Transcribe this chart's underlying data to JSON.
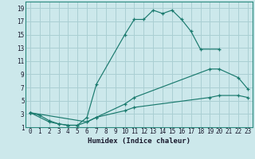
{
  "title": "",
  "xlabel": "Humidex (Indice chaleur)",
  "bg_color": "#cce8eb",
  "grid_color": "#aacfd3",
  "line_color": "#1a7a6e",
  "xlim": [
    -0.5,
    23.5
  ],
  "ylim": [
    1,
    20
  ],
  "xticks": [
    0,
    1,
    2,
    3,
    4,
    5,
    6,
    7,
    8,
    9,
    10,
    11,
    12,
    13,
    14,
    15,
    16,
    17,
    18,
    19,
    20,
    21,
    22,
    23
  ],
  "yticks": [
    1,
    3,
    5,
    7,
    9,
    11,
    13,
    15,
    17,
    19
  ],
  "curve1_x": [
    0,
    1,
    2,
    3,
    4,
    5,
    6,
    7,
    10,
    11,
    12,
    13,
    14,
    15,
    16,
    17,
    18,
    20
  ],
  "curve1_y": [
    3.2,
    2.8,
    2.0,
    1.5,
    1.3,
    1.3,
    2.5,
    7.5,
    15.0,
    17.3,
    17.3,
    18.7,
    18.2,
    18.7,
    17.3,
    15.5,
    12.8,
    12.8
  ],
  "curve2_x": [
    0,
    6,
    7,
    10,
    11,
    19,
    20,
    22,
    23
  ],
  "curve2_y": [
    3.2,
    1.8,
    2.5,
    4.5,
    5.5,
    9.8,
    9.8,
    8.5,
    6.8
  ],
  "curve3_x": [
    0,
    2,
    3,
    4,
    5,
    6,
    7,
    10,
    11,
    19,
    20,
    22,
    23
  ],
  "curve3_y": [
    3.2,
    1.8,
    1.5,
    1.3,
    1.3,
    1.8,
    2.5,
    3.5,
    4.0,
    5.5,
    5.8,
    5.8,
    5.5
  ]
}
